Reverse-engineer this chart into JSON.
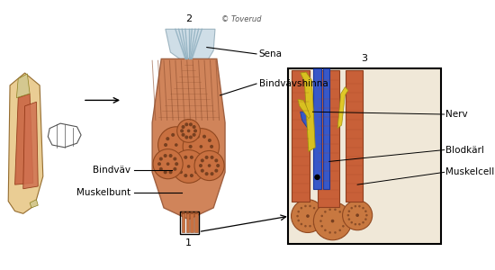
{
  "bg_color": "#ffffff",
  "labels": {
    "muskelbunt": "Muskelbunt",
    "bindvav": "Bindväv",
    "bindvavshinna": "Bindvävshinna",
    "sena": "Sena",
    "muskelcell": "Muskelcell",
    "blodkarl": "Blodkärl",
    "nerv": "Nerv",
    "num1": "1",
    "num2": "2",
    "num3": "3",
    "copyright": "© Toverud"
  },
  "colors": {
    "muscle_orange": "#C86A30",
    "muscle_light": "#D4845A",
    "muscle_dark": "#8B3A10",
    "tendon_blue": "#A8C8D8",
    "nerve_yellow": "#E8C820",
    "blood_blue": "#4060C0",
    "muscle_cell_top": "#C87840",
    "muscle_cell_inner": "#A05828",
    "background_box": "#F5E8D8",
    "line_color": "#000000",
    "box_border": "#000000",
    "arm_skin": "#E8C888",
    "arm_muscle": "#C86040",
    "tendon_yellow": "#D4C890"
  },
  "text_color": "#000000",
  "font_size_labels": 8,
  "font_size_numbers": 9
}
